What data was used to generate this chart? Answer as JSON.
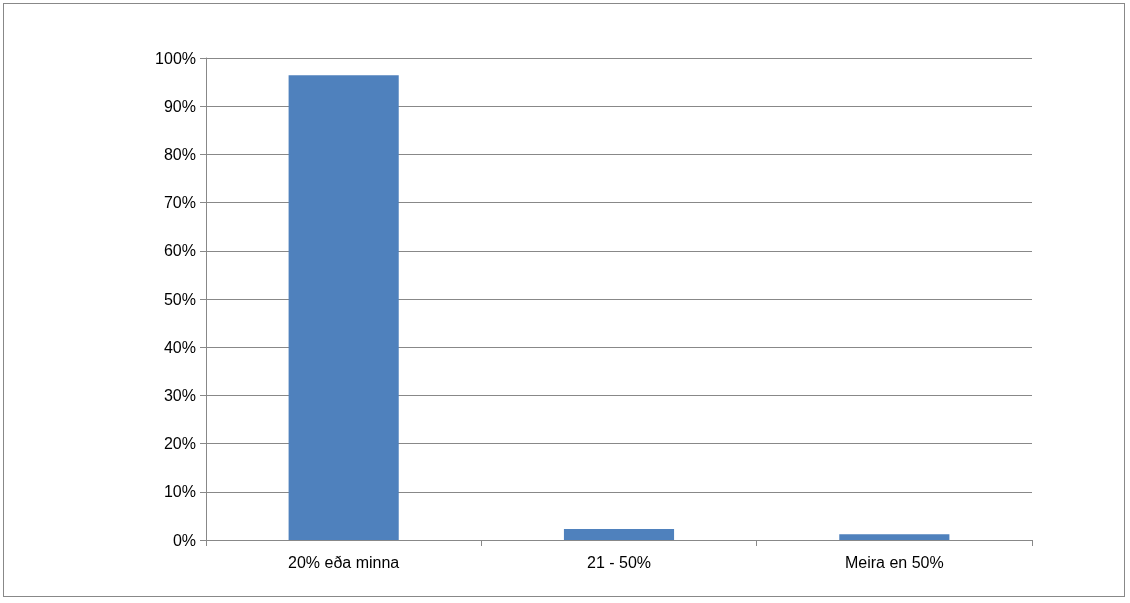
{
  "chart_data": {
    "type": "bar",
    "categories": [
      "20% eða minna",
      "21 - 50%",
      "Meira en 50%"
    ],
    "values": [
      96.4,
      2.3,
      1.2
    ],
    "color": "#4f81bd",
    "ylim": [
      0,
      100
    ],
    "yticks": [
      {
        "value": 0,
        "label": "0%"
      },
      {
        "value": 10,
        "label": "10%"
      },
      {
        "value": 20,
        "label": "20%"
      },
      {
        "value": 30,
        "label": "30%"
      },
      {
        "value": 40,
        "label": "40%"
      },
      {
        "value": 50,
        "label": "50%"
      },
      {
        "value": 60,
        "label": "60%"
      },
      {
        "value": 70,
        "label": "70%"
      },
      {
        "value": 80,
        "label": "80%"
      },
      {
        "value": 90,
        "label": "90%"
      },
      {
        "value": 100,
        "label": "100%"
      }
    ],
    "grid": "y"
  }
}
